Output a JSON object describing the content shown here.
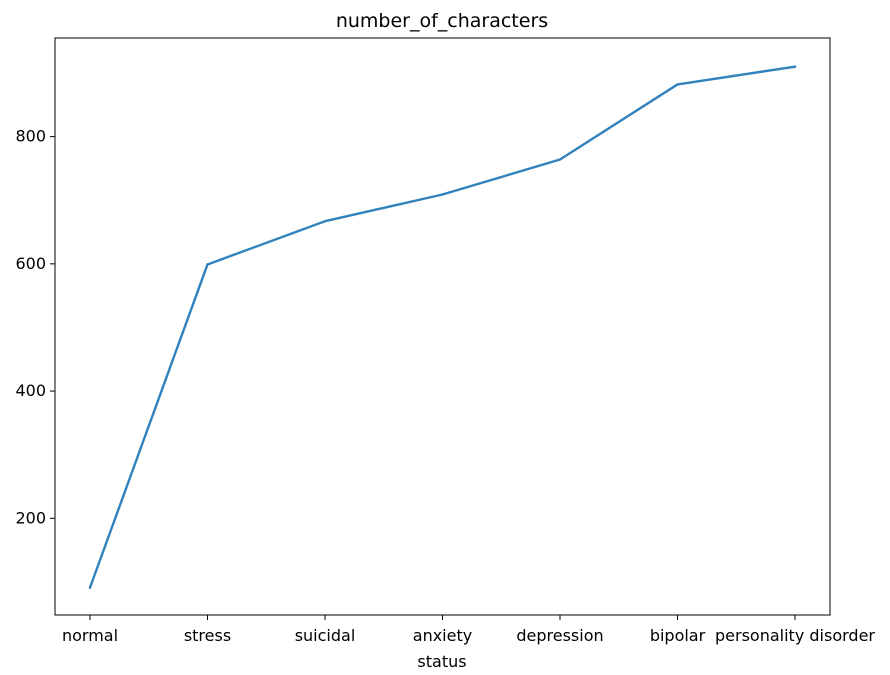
{
  "chart_data": {
    "type": "line",
    "title": "number_of_characters",
    "xlabel": "status",
    "ylabel": "",
    "categories": [
      "normal",
      "stress",
      "suicidal",
      "anxiety",
      "depression",
      "bipolar",
      "personality disorder"
    ],
    "series": [
      {
        "values": [
          91,
          599,
          667,
          709,
          764,
          882,
          910
        ],
        "color": "#3182bd"
      }
    ],
    "yticks": [
      200,
      400,
      600,
      800
    ],
    "ylim": [
      48,
      955
    ],
    "grid": false,
    "legend": "none"
  }
}
